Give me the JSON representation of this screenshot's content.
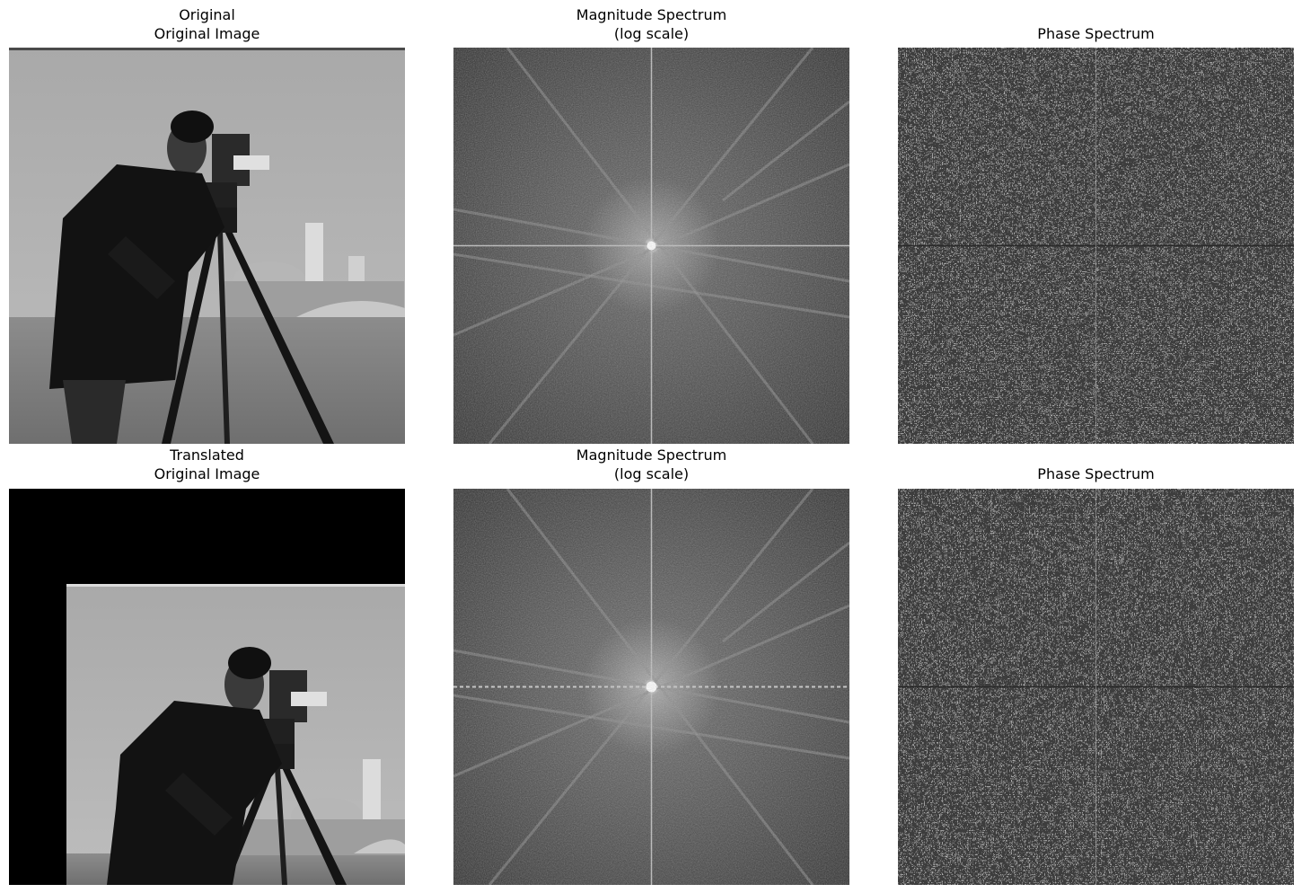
{
  "panels": {
    "original": {
      "title_line1": "Original",
      "title_line2": "Original Image"
    },
    "magnitude_1": {
      "title_line1": "Magnitude Spectrum",
      "title_line2": "(log scale)"
    },
    "phase_1": {
      "title": "Phase Spectrum"
    },
    "translated": {
      "title_line1": "Translated",
      "title_line2": "Original Image"
    },
    "magnitude_2": {
      "title_line1": "Magnitude Spectrum",
      "title_line2": "(log scale)"
    },
    "phase_2": {
      "title": "Phase Spectrum"
    }
  },
  "colors": {
    "background": "#ffffff",
    "spectrum_base": "#3a3a3a",
    "black": "#000000"
  }
}
